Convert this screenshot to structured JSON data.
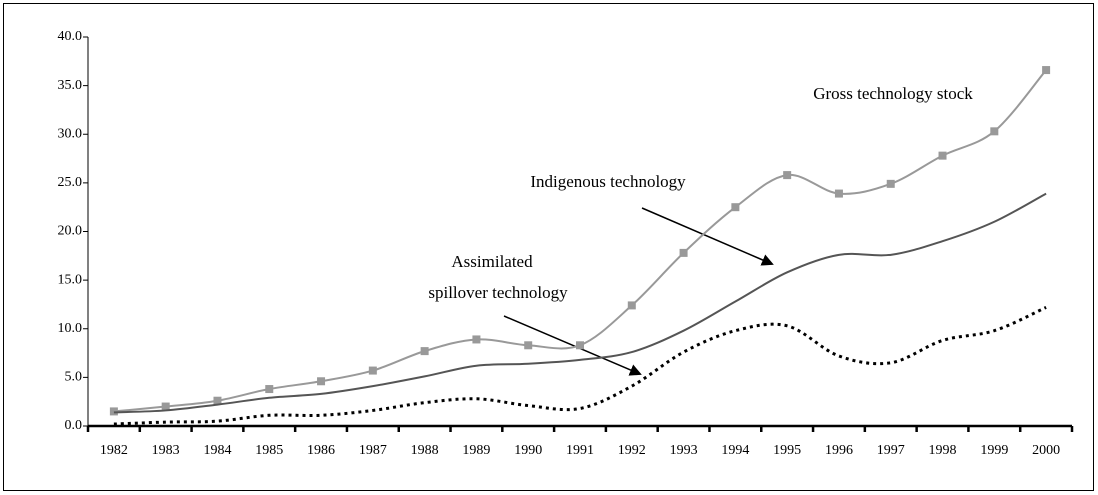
{
  "chart_data": {
    "type": "line",
    "categories": [
      "1982",
      "1983",
      "1984",
      "1985",
      "1986",
      "1987",
      "1988",
      "1989",
      "1990",
      "1991",
      "1992",
      "1993",
      "1994",
      "1995",
      "1996",
      "1997",
      "1998",
      "1999",
      "2000"
    ],
    "series": [
      {
        "name": "Gross technology stock",
        "color": "#999999",
        "marker": "square",
        "line_style": "solid",
        "values": [
          1.5,
          2.0,
          2.6,
          3.8,
          4.6,
          5.7,
          7.7,
          8.9,
          8.3,
          8.3,
          12.4,
          17.8,
          22.5,
          25.8,
          23.9,
          24.9,
          27.8,
          30.3,
          36.6
        ]
      },
      {
        "name": "Indigenous technology",
        "color": "#555555",
        "marker": "none",
        "line_style": "solid",
        "values": [
          1.4,
          1.6,
          2.2,
          2.9,
          3.3,
          4.1,
          5.1,
          6.2,
          6.4,
          6.8,
          7.6,
          9.8,
          12.8,
          15.8,
          17.6,
          17.6,
          19.0,
          21.0,
          23.9
        ]
      },
      {
        "name": "Assimilated spillover technology",
        "color": "#000000",
        "marker": "none",
        "line_style": "dotted",
        "values": [
          0.2,
          0.4,
          0.5,
          1.1,
          1.1,
          1.6,
          2.4,
          2.8,
          2.1,
          1.8,
          4.1,
          7.6,
          9.8,
          10.3,
          7.2,
          6.5,
          8.8,
          9.8,
          12.2
        ]
      }
    ],
    "annotations": [
      "Gross technology stock",
      "Indigenous technology",
      "Assimilated",
      "spillover technology"
    ],
    "ylim": [
      0,
      40
    ],
    "yticks": [
      {
        "value": 0,
        "label": "0.0"
      },
      {
        "value": 5,
        "label": "5.0"
      },
      {
        "value": 10,
        "label": "10.0"
      },
      {
        "value": 15,
        "label": "15.0"
      },
      {
        "value": 20,
        "label": "20.0"
      },
      {
        "value": 25,
        "label": "25.0"
      },
      {
        "value": 30,
        "label": "30.0"
      },
      {
        "value": 35,
        "label": "35.0"
      },
      {
        "value": 40,
        "label": "40.0"
      }
    ],
    "grid": false
  }
}
